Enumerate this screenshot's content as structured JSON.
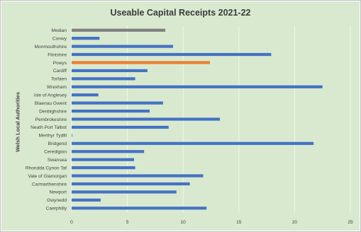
{
  "chart_data": {
    "type": "bar",
    "orientation": "horizontal",
    "title": "Useable Capital Receipts 2021-22",
    "ylabel": "Welsh Local Authorities",
    "xlabel": "",
    "xlim": [
      0,
      25
    ],
    "xticks": [
      0,
      5,
      10,
      15,
      20,
      25
    ],
    "grid": true,
    "legend": "none",
    "categories": [
      "Median",
      "Conwy",
      "Monmouthshire",
      "Flintshire",
      "Powys",
      "Cardiff",
      "Torfaen",
      "Wrexham",
      "Isle of Anglesey",
      "Blaenau Gwent",
      "Denbighshire",
      "Pembrokeshire",
      "Neath Port Talbot",
      "Merthyr Tydfil",
      "Bridgend",
      "Ceredigion",
      "Swansea",
      "Rhondda Cynon Taf",
      "Vale of Glamorgan",
      "Carmarthenshire",
      "Newport",
      "Gwynedd",
      "Caerphilly"
    ],
    "values": [
      8.4,
      2.5,
      9.1,
      17.9,
      12.4,
      6.8,
      5.7,
      22.5,
      2.4,
      8.2,
      7.0,
      13.3,
      8.7,
      0.05,
      21.7,
      6.5,
      5.6,
      5.7,
      11.8,
      10.6,
      9.4,
      2.6,
      12.1
    ],
    "colors": {
      "default": "#4472c4",
      "Median": "#7f7f7f",
      "Powys": "#ed7d31"
    },
    "background": "#d9e9cf",
    "gridline_color": "#bfbfbf"
  }
}
